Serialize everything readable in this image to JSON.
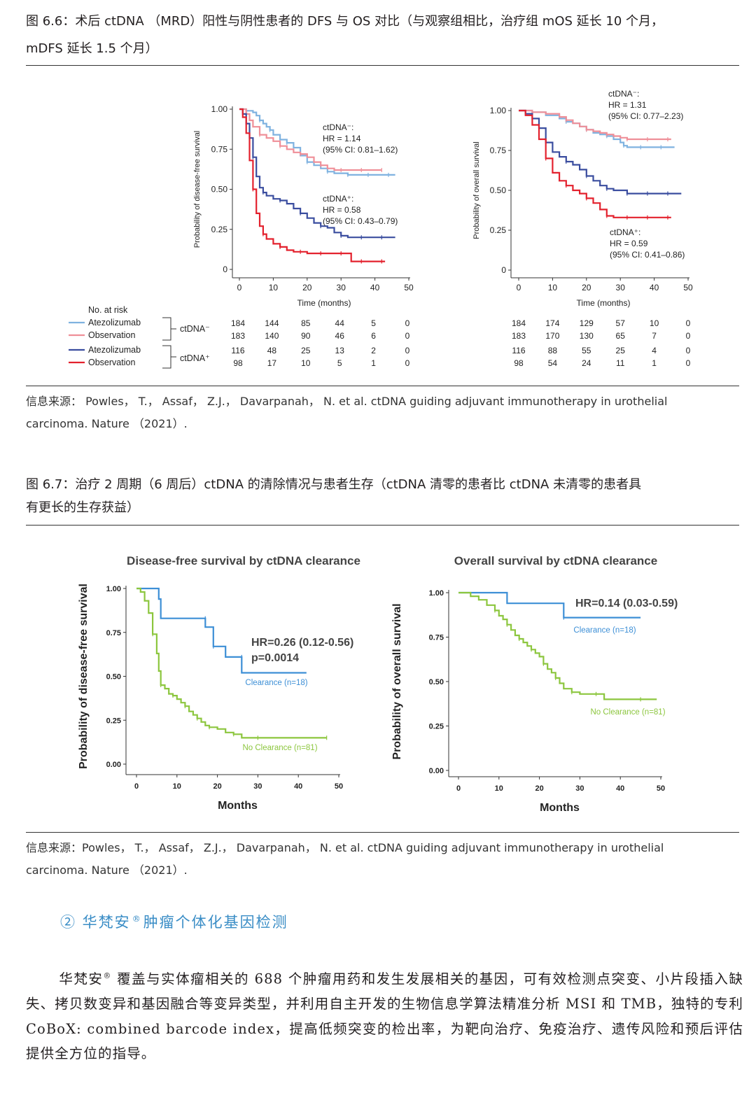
{
  "fig66": {
    "caption_line1": "图 6.6：术后 ctDNA （MRD）阳性与阴性患者的 DFS 与 OS 对比（与观察组相比，治疗组 mOS 延长 10 个月，",
    "caption_line2": "mDFS 延长 1.5 个月）",
    "source_line1": "信息来源： Powles， T.， Assaf， Z.J.， Davarpanah， N. et al. ctDNA guiding adjuvant immunotherapy in urothelial",
    "source_line2": "carcinoma. Nature （2021）."
  },
  "fig67": {
    "caption_line1": "图 6.7：治疗 2 周期（6 周后）ctDNA 的清除情况与患者生存（ctDNA 清零的患者比 ctDNA 未清零的患者具",
    "caption_line2": "有更长的生存获益）",
    "source_line1": "信息来源：Powles， T.， Assaf， Z.J.， Davarpanah， N. et al. ctDNA guiding adjuvant immunotherapy in urothelial",
    "source_line2": "carcinoma. Nature （2021）."
  },
  "section": {
    "title_prefix": "② 华梵安",
    "reg": "®",
    "title_suffix": "肿瘤个体化基因检测"
  },
  "paragraph": {
    "part1": "华梵安",
    "reg": "®",
    "part2": " 覆盖与实体瘤相关的 688 个肿瘤用药和发生发展相关的基因，可有效检测点突变、小片段插入缺失、拷贝数变异和基因融合等变异类型，并利用自主开发的生物信息学算法精准分析 MSI 和 TMB，独特的专利 CoBoX: combined barcode index，提高低频突变的检出率，为靶向治疗、免疫治疗、遗传风险和预后评估提供全方位的指导。"
  },
  "colors": {
    "light_blue": "#7fb2e0",
    "pink": "#ef8f98",
    "dark_blue": "#3a4d9f",
    "red": "#e3212d",
    "clear_blue": "#3d8fd6",
    "green": "#8cc63e"
  },
  "chart_data": [
    {
      "type": "line",
      "id": "dfs",
      "title": "",
      "xlabel": "Time (months)",
      "ylabel": "Probability of disease-free survival",
      "xlim": [
        0,
        50
      ],
      "ylim": [
        0,
        1
      ],
      "xticks": [
        "0",
        "10",
        "20",
        "30",
        "40",
        "50"
      ],
      "yticks": [
        "0",
        "0.25",
        "0.50",
        "0.75",
        "1.00"
      ],
      "series": [
        {
          "name": "ctDNA- Atezolizumab",
          "color": "#7fb2e0",
          "x": [
            0,
            2,
            4,
            5,
            6,
            7,
            8,
            9,
            10,
            12,
            14,
            16,
            18,
            20,
            22,
            24,
            26,
            28,
            30,
            32,
            34,
            36,
            38,
            40,
            42,
            44,
            46
          ],
          "y": [
            1.0,
            0.99,
            0.98,
            0.96,
            0.93,
            0.91,
            0.89,
            0.87,
            0.84,
            0.81,
            0.79,
            0.76,
            0.71,
            0.67,
            0.65,
            0.63,
            0.61,
            0.6,
            0.6,
            0.59,
            0.59,
            0.59,
            0.59,
            0.59,
            0.59,
            0.59,
            0.59
          ]
        },
        {
          "name": "ctDNA- Observation",
          "color": "#ef8f98",
          "x": [
            0,
            2,
            3,
            4,
            6,
            8,
            10,
            12,
            14,
            16,
            18,
            20,
            22,
            24,
            26,
            28,
            30,
            32,
            34,
            36,
            38,
            40,
            42
          ],
          "y": [
            1.0,
            0.97,
            0.93,
            0.89,
            0.84,
            0.82,
            0.8,
            0.77,
            0.75,
            0.73,
            0.72,
            0.7,
            0.67,
            0.65,
            0.63,
            0.62,
            0.62,
            0.62,
            0.62,
            0.62,
            0.62,
            0.62,
            0.62
          ]
        },
        {
          "name": "ctDNA+ Atezolizumab",
          "color": "#3a4d9f",
          "x": [
            0,
            1,
            2,
            3,
            4,
            5,
            6,
            7,
            8,
            10,
            12,
            14,
            16,
            18,
            20,
            22,
            24,
            26,
            28,
            30,
            32,
            34,
            36,
            38,
            40,
            42,
            44,
            46
          ],
          "y": [
            1.0,
            0.97,
            0.91,
            0.82,
            0.7,
            0.58,
            0.51,
            0.48,
            0.46,
            0.44,
            0.43,
            0.41,
            0.38,
            0.35,
            0.32,
            0.29,
            0.27,
            0.26,
            0.23,
            0.21,
            0.2,
            0.2,
            0.2,
            0.2,
            0.2,
            0.2,
            0.2,
            0.2
          ]
        },
        {
          "name": "ctDNA+ Observation",
          "color": "#e3212d",
          "x": [
            0,
            1,
            2,
            3,
            4,
            5,
            6,
            7,
            8,
            10,
            12,
            14,
            16,
            18,
            20,
            22,
            24,
            26,
            28,
            30,
            32,
            33,
            36,
            38,
            40,
            42,
            43
          ],
          "y": [
            1.0,
            0.95,
            0.85,
            0.68,
            0.5,
            0.35,
            0.27,
            0.22,
            0.19,
            0.16,
            0.14,
            0.12,
            0.11,
            0.11,
            0.1,
            0.1,
            0.1,
            0.1,
            0.1,
            0.1,
            0.1,
            0.05,
            0.05,
            0.05,
            0.05,
            0.05,
            0.05
          ]
        }
      ],
      "annotations": [
        {
          "line1": "ctDNA⁻:",
          "line2": "HR = 1.14",
          "line3": "(95% CI: 0.81–1.62)"
        },
        {
          "line1": "ctDNA⁺:",
          "line2": "HR = 0.58",
          "line3": "(95% CI: 0.43–0.79)"
        }
      ],
      "risk_table": {
        "header": "No. at risk",
        "rows": [
          {
            "label": "Atezolizumab",
            "color": "#7fb2e0",
            "values": [
              "184",
              "144",
              "85",
              "44",
              "5",
              "0"
            ]
          },
          {
            "label": "Observation",
            "color": "#ef8f98",
            "values": [
              "183",
              "140",
              "90",
              "46",
              "6",
              "0"
            ]
          },
          {
            "label": "Atezolizumab",
            "color": "#3a4d9f",
            "values": [
              "116",
              "48",
              "25",
              "13",
              "2",
              "0"
            ]
          },
          {
            "label": "Observation",
            "color": "#e3212d",
            "values": [
              "98",
              "17",
              "10",
              "5",
              "1",
              "0"
            ]
          }
        ],
        "group_neg": "ctDNA⁻",
        "group_pos": "ctDNA⁺"
      }
    },
    {
      "type": "line",
      "id": "os",
      "title": "",
      "xlabel": "Time (months)",
      "ylabel": "Probability of overall survival",
      "xlim": [
        0,
        50
      ],
      "ylim": [
        0,
        1
      ],
      "xticks": [
        "0",
        "10",
        "20",
        "30",
        "40",
        "50"
      ],
      "yticks": [
        "0",
        "0.25",
        "0.50",
        "0.75",
        "1.00"
      ],
      "series": [
        {
          "name": "ctDNA- Atezolizumab",
          "color": "#7fb2e0",
          "x": [
            0,
            4,
            8,
            12,
            14,
            16,
            18,
            20,
            22,
            24,
            26,
            28,
            30,
            31,
            32,
            34,
            36,
            38,
            40,
            42,
            44,
            46
          ],
          "y": [
            1.0,
            0.99,
            0.97,
            0.95,
            0.93,
            0.92,
            0.9,
            0.88,
            0.86,
            0.85,
            0.84,
            0.82,
            0.8,
            0.78,
            0.77,
            0.77,
            0.77,
            0.77,
            0.77,
            0.77,
            0.77,
            0.77
          ]
        },
        {
          "name": "ctDNA- Observation",
          "color": "#ef8f98",
          "x": [
            0,
            4,
            8,
            12,
            14,
            16,
            18,
            20,
            22,
            24,
            26,
            28,
            30,
            32,
            34,
            36,
            38,
            40,
            42,
            44,
            45
          ],
          "y": [
            1.0,
            0.99,
            0.98,
            0.96,
            0.94,
            0.92,
            0.9,
            0.88,
            0.87,
            0.86,
            0.85,
            0.84,
            0.83,
            0.82,
            0.82,
            0.82,
            0.82,
            0.82,
            0.82,
            0.82,
            0.82
          ]
        },
        {
          "name": "ctDNA+ Atezolizumab",
          "color": "#3a4d9f",
          "x": [
            0,
            2,
            4,
            6,
            8,
            10,
            12,
            14,
            16,
            18,
            20,
            22,
            24,
            26,
            28,
            30,
            32,
            34,
            36,
            38,
            40,
            42,
            44,
            46,
            48
          ],
          "y": [
            1.0,
            0.98,
            0.95,
            0.89,
            0.8,
            0.74,
            0.71,
            0.68,
            0.66,
            0.63,
            0.59,
            0.56,
            0.53,
            0.51,
            0.5,
            0.5,
            0.48,
            0.48,
            0.48,
            0.48,
            0.48,
            0.48,
            0.48,
            0.48,
            0.48
          ]
        },
        {
          "name": "ctDNA+ Observation",
          "color": "#e3212d",
          "x": [
            0,
            2,
            4,
            6,
            8,
            10,
            12,
            14,
            16,
            18,
            20,
            22,
            24,
            26,
            28,
            30,
            32,
            34,
            36,
            38,
            40,
            42,
            44,
            45
          ],
          "y": [
            1.0,
            0.97,
            0.91,
            0.82,
            0.7,
            0.61,
            0.56,
            0.53,
            0.5,
            0.48,
            0.45,
            0.42,
            0.38,
            0.34,
            0.33,
            0.33,
            0.33,
            0.33,
            0.33,
            0.33,
            0.33,
            0.33,
            0.33,
            0.33
          ]
        }
      ],
      "annotations": [
        {
          "line1": "ctDNA⁻:",
          "line2": "HR = 1.31",
          "line3": "(95% CI: 0.77–2.23)"
        },
        {
          "line1": "ctDNA⁺:",
          "line2": "HR = 0.59",
          "line3": "(95% CI: 0.41–0.86)"
        }
      ],
      "risk_table": {
        "rows": [
          {
            "values": [
              "184",
              "174",
              "129",
              "57",
              "10",
              "0"
            ]
          },
          {
            "values": [
              "183",
              "170",
              "130",
              "65",
              "7",
              "0"
            ]
          },
          {
            "values": [
              "116",
              "88",
              "55",
              "25",
              "4",
              "0"
            ]
          },
          {
            "values": [
              "98",
              "54",
              "24",
              "11",
              "1",
              "0"
            ]
          }
        ]
      }
    },
    {
      "type": "line",
      "id": "dfs_clear",
      "title": "Disease-free survival by ctDNA clearance",
      "xlabel": "Months",
      "ylabel": "Probability of disease-free survival",
      "xlim": [
        0,
        50
      ],
      "ylim": [
        0,
        1
      ],
      "xticks": [
        "0",
        "10",
        "20",
        "30",
        "40",
        "50"
      ],
      "yticks": [
        "0.00",
        "0.25",
        "0.50",
        "0.75",
        "1.00"
      ],
      "series": [
        {
          "name": "Clearance (n=18)",
          "color": "#3d8fd6",
          "x": [
            0,
            5.5,
            5.5,
            6,
            17,
            17,
            19,
            19,
            22,
            22,
            26,
            26,
            42
          ],
          "y": [
            1.0,
            1.0,
            0.94,
            0.83,
            0.83,
            0.78,
            0.78,
            0.67,
            0.67,
            0.61,
            0.61,
            0.52,
            0.52
          ]
        },
        {
          "name": "No Clearance (n=81)",
          "color": "#8cc63e",
          "x": [
            0,
            1,
            2,
            3,
            4,
            5,
            5.5,
            6,
            7,
            8,
            9,
            10,
            11,
            12,
            13,
            14,
            15,
            16,
            17,
            18,
            20,
            22,
            24,
            26,
            28,
            30,
            35,
            40,
            47
          ],
          "y": [
            1.0,
            0.98,
            0.93,
            0.86,
            0.74,
            0.63,
            0.53,
            0.45,
            0.43,
            0.4,
            0.39,
            0.37,
            0.35,
            0.33,
            0.3,
            0.28,
            0.26,
            0.24,
            0.22,
            0.21,
            0.2,
            0.18,
            0.17,
            0.15,
            0.15,
            0.15,
            0.15,
            0.15,
            0.15
          ]
        }
      ],
      "annotations": [
        {
          "line1": "HR=0.26 (0.12-0.56)",
          "line2": "p=0.0014"
        }
      ]
    },
    {
      "type": "line",
      "id": "os_clear",
      "title": "Overall survival by ctDNA clearance",
      "xlabel": "Months",
      "ylabel": "Probability of overall survival",
      "xlim": [
        0,
        50
      ],
      "ylim": [
        0,
        1
      ],
      "xticks": [
        "0",
        "10",
        "20",
        "30",
        "40",
        "50"
      ],
      "yticks": [
        "0.00",
        "0.25",
        "0.50",
        "0.75",
        "1.00"
      ],
      "series": [
        {
          "name": "Clearance (n=18)",
          "color": "#3d8fd6",
          "x": [
            0,
            12,
            12,
            26,
            26,
            45
          ],
          "y": [
            1.0,
            1.0,
            0.94,
            0.94,
            0.86,
            0.86
          ]
        },
        {
          "name": "No Clearance (n=81)",
          "color": "#8cc63e",
          "x": [
            0,
            3,
            5,
            7,
            9,
            10,
            11,
            12,
            13,
            14,
            15,
            16,
            17,
            18,
            19,
            20,
            21,
            22,
            23,
            24,
            25,
            26,
            28,
            30,
            32,
            34,
            36,
            40,
            45,
            49
          ],
          "y": [
            1.0,
            0.98,
            0.96,
            0.93,
            0.9,
            0.87,
            0.85,
            0.82,
            0.79,
            0.76,
            0.74,
            0.72,
            0.7,
            0.68,
            0.66,
            0.64,
            0.6,
            0.57,
            0.55,
            0.52,
            0.49,
            0.46,
            0.44,
            0.43,
            0.43,
            0.43,
            0.4,
            0.4,
            0.4,
            0.4
          ]
        }
      ],
      "annotations": [
        {
          "line1": "HR=0.14 (0.03-0.59)"
        }
      ]
    }
  ]
}
